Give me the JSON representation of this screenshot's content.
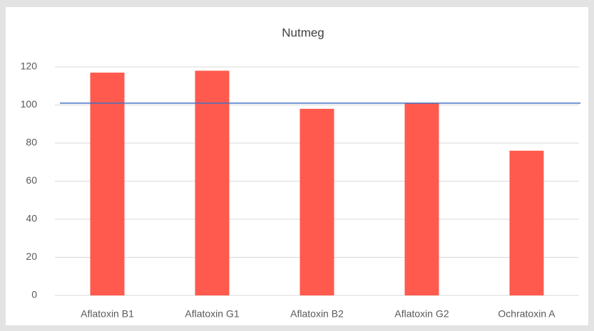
{
  "chart_data": {
    "type": "bar",
    "title": "Nutmeg",
    "categories": [
      "Aflatoxin B1",
      "Aflatoxin G1",
      "Aflatoxin B2",
      "Aflatoxin G2",
      "Ochratoxin A"
    ],
    "values": [
      117,
      118,
      98,
      101,
      76
    ],
    "color": "#ff5a4d",
    "reference_line": {
      "value": 101,
      "color": "#4472c4"
    },
    "ylim": [
      0,
      120
    ],
    "yticks": [
      0,
      20,
      40,
      60,
      80,
      100,
      120
    ],
    "grid": true
  }
}
